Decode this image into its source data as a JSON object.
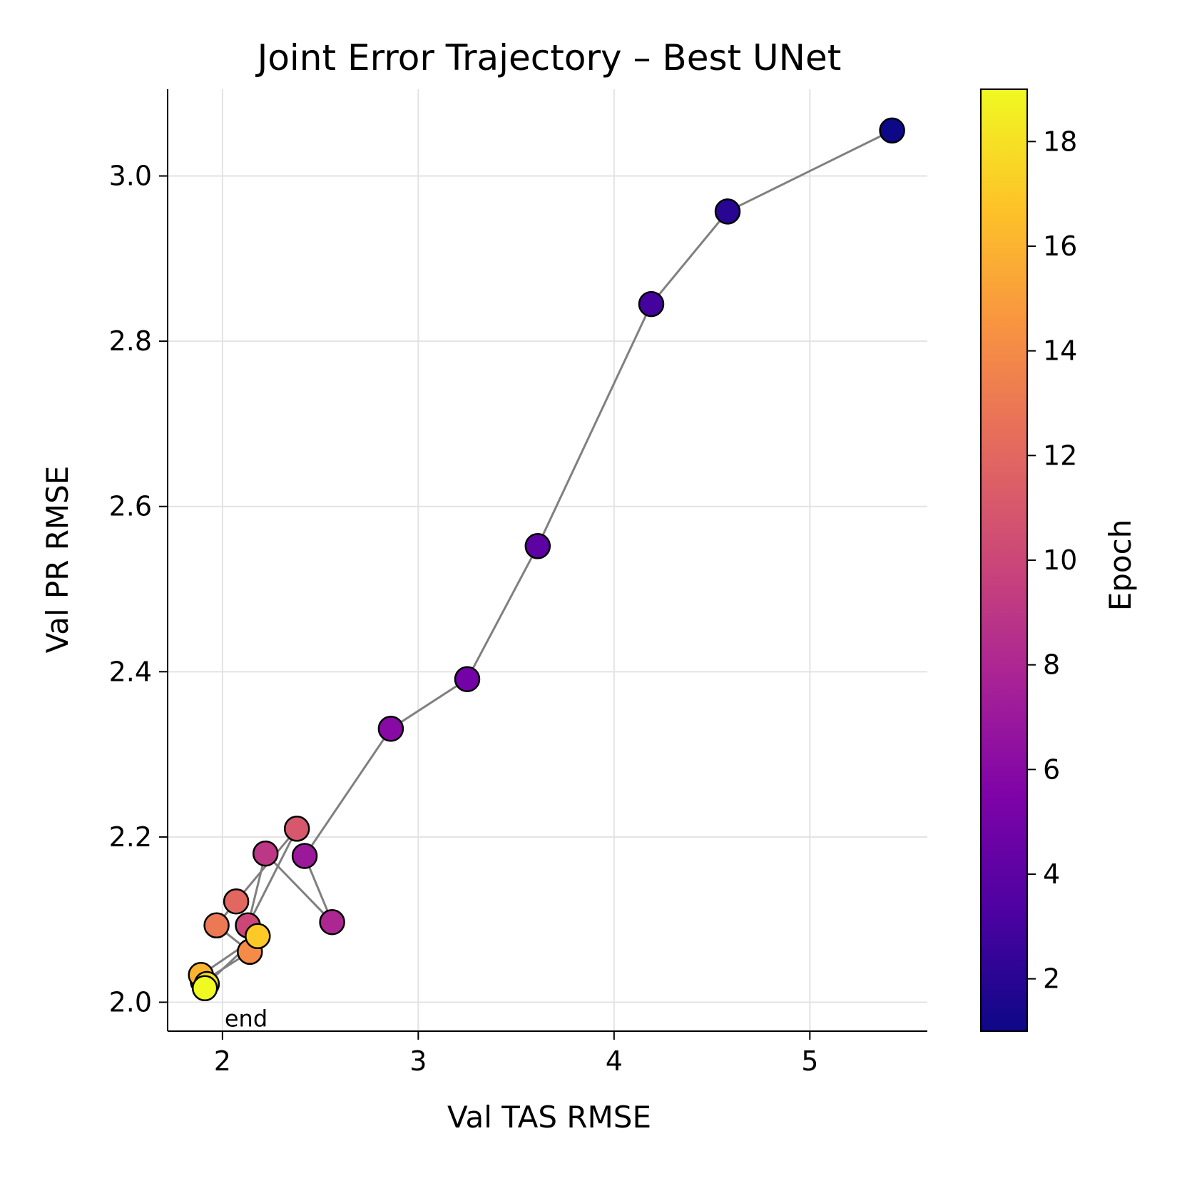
{
  "chart_data": {
    "type": "scatter",
    "title": "Joint Error Trajectory – Best UNet",
    "xlabel": "Val TAS RMSE",
    "ylabel": "Val PR RMSE",
    "xlim": [
      1.72,
      5.6
    ],
    "ylim": [
      1.965,
      3.105
    ],
    "xticks": [
      2,
      3,
      4,
      5
    ],
    "xtick_labels": [
      "2",
      "3",
      "4",
      "5"
    ],
    "yticks": [
      2.0,
      2.2,
      2.4,
      2.6,
      2.8,
      3.0
    ],
    "ytick_labels": [
      "2.0",
      "2.2",
      "2.4",
      "2.6",
      "2.8",
      "3.0"
    ],
    "grid": true,
    "connect_points": true,
    "line_color": "#808080",
    "colormap": "plasma",
    "colorbar": {
      "label": "Epoch",
      "range": [
        1,
        19
      ],
      "ticks": [
        2,
        4,
        6,
        8,
        10,
        12,
        14,
        16,
        18
      ],
      "tick_labels": [
        "2",
        "4",
        "6",
        "8",
        "10",
        "12",
        "14",
        "16",
        "18"
      ]
    },
    "annotations": [
      {
        "text": "end",
        "x": 2.0,
        "y": 1.98
      }
    ],
    "series": [
      {
        "epochs": [
          1,
          2,
          3,
          4,
          5,
          6,
          7,
          8,
          9,
          10,
          11,
          12,
          13,
          14,
          15,
          16,
          17,
          18,
          19
        ],
        "x": [
          5.42,
          4.58,
          4.19,
          3.61,
          3.25,
          2.86,
          2.42,
          2.56,
          2.22,
          2.13,
          2.38,
          2.07,
          1.97,
          2.14,
          1.9,
          1.89,
          2.18,
          1.92,
          1.91
        ],
        "y": [
          3.055,
          2.957,
          2.845,
          2.552,
          2.391,
          2.331,
          2.177,
          2.097,
          2.18,
          2.093,
          2.21,
          2.122,
          2.093,
          2.061,
          2.025,
          2.033,
          2.08,
          2.022,
          2.017
        ]
      }
    ]
  }
}
